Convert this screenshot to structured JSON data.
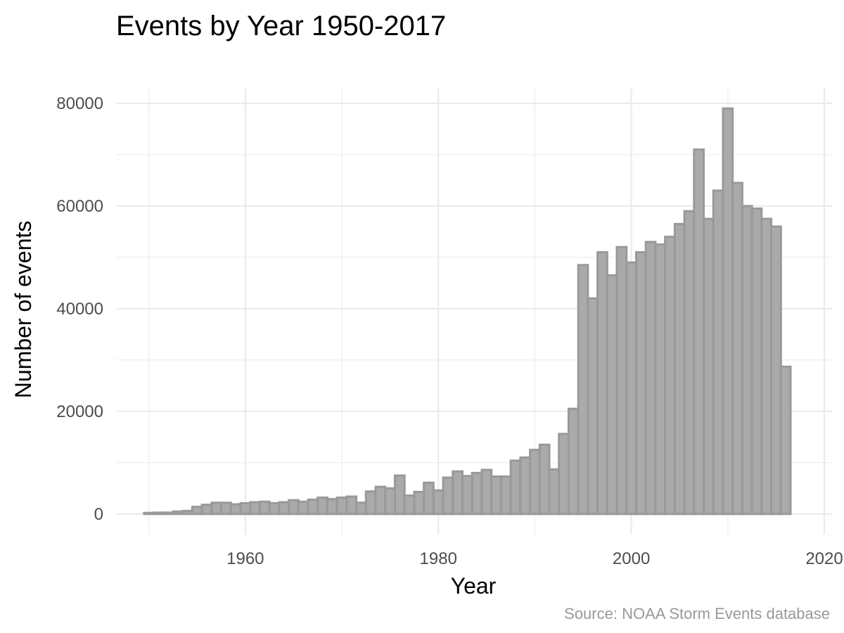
{
  "chart_data": {
    "type": "bar",
    "title": "Events by Year 1950-2017",
    "xlabel": "Year",
    "ylabel": "Number of events",
    "caption": "Source: NOAA Storm Events database",
    "xlim": [
      1946.6,
      2020.8
    ],
    "ylim": [
      -4000,
      83000
    ],
    "x_ticks": [
      1960,
      1980,
      2000,
      2020
    ],
    "x_minor_ticks": [
      1950,
      1970,
      1990,
      2010
    ],
    "y_ticks": [
      0,
      20000,
      40000,
      60000,
      80000
    ],
    "y_minor_ticks": [
      10000,
      30000,
      50000,
      70000
    ],
    "grid": true,
    "colors": {
      "fill": "#aaaaaa",
      "outline": "#999999"
    },
    "years": [
      1950,
      1951,
      1952,
      1953,
      1954,
      1955,
      1956,
      1957,
      1958,
      1959,
      1960,
      1961,
      1962,
      1963,
      1964,
      1965,
      1966,
      1967,
      1968,
      1969,
      1970,
      1971,
      1972,
      1973,
      1974,
      1975,
      1976,
      1977,
      1978,
      1979,
      1980,
      1981,
      1982,
      1983,
      1984,
      1985,
      1986,
      1987,
      1988,
      1989,
      1990,
      1991,
      1992,
      1993,
      1994,
      1995,
      1996,
      1997,
      1998,
      1999,
      2000,
      2001,
      2002,
      2003,
      2004,
      2005,
      2006,
      2007,
      2008,
      2009,
      2010,
      2011,
      2012,
      2013,
      2014,
      2015,
      2016,
      2017
    ],
    "values": [
      220,
      270,
      270,
      490,
      610,
      1400,
      1800,
      2200,
      2200,
      1900,
      2100,
      2300,
      2400,
      2100,
      2300,
      2700,
      2400,
      2800,
      3200,
      2900,
      3200,
      3400,
      2200,
      4400,
      5300,
      5000,
      7500,
      3600,
      4300,
      6100,
      4600,
      7100,
      8300,
      7400,
      8000,
      8600,
      7300,
      7300,
      10400,
      11000,
      12500,
      13500,
      8700,
      15600,
      20500,
      48500,
      42000,
      51000,
      46500,
      52000,
      49000,
      51000,
      53000,
      52500,
      54000,
      56500,
      59000,
      71000,
      57500,
      63000,
      79000,
      64500,
      60000,
      59500,
      57500,
      56000,
      28700,
      0
    ]
  }
}
